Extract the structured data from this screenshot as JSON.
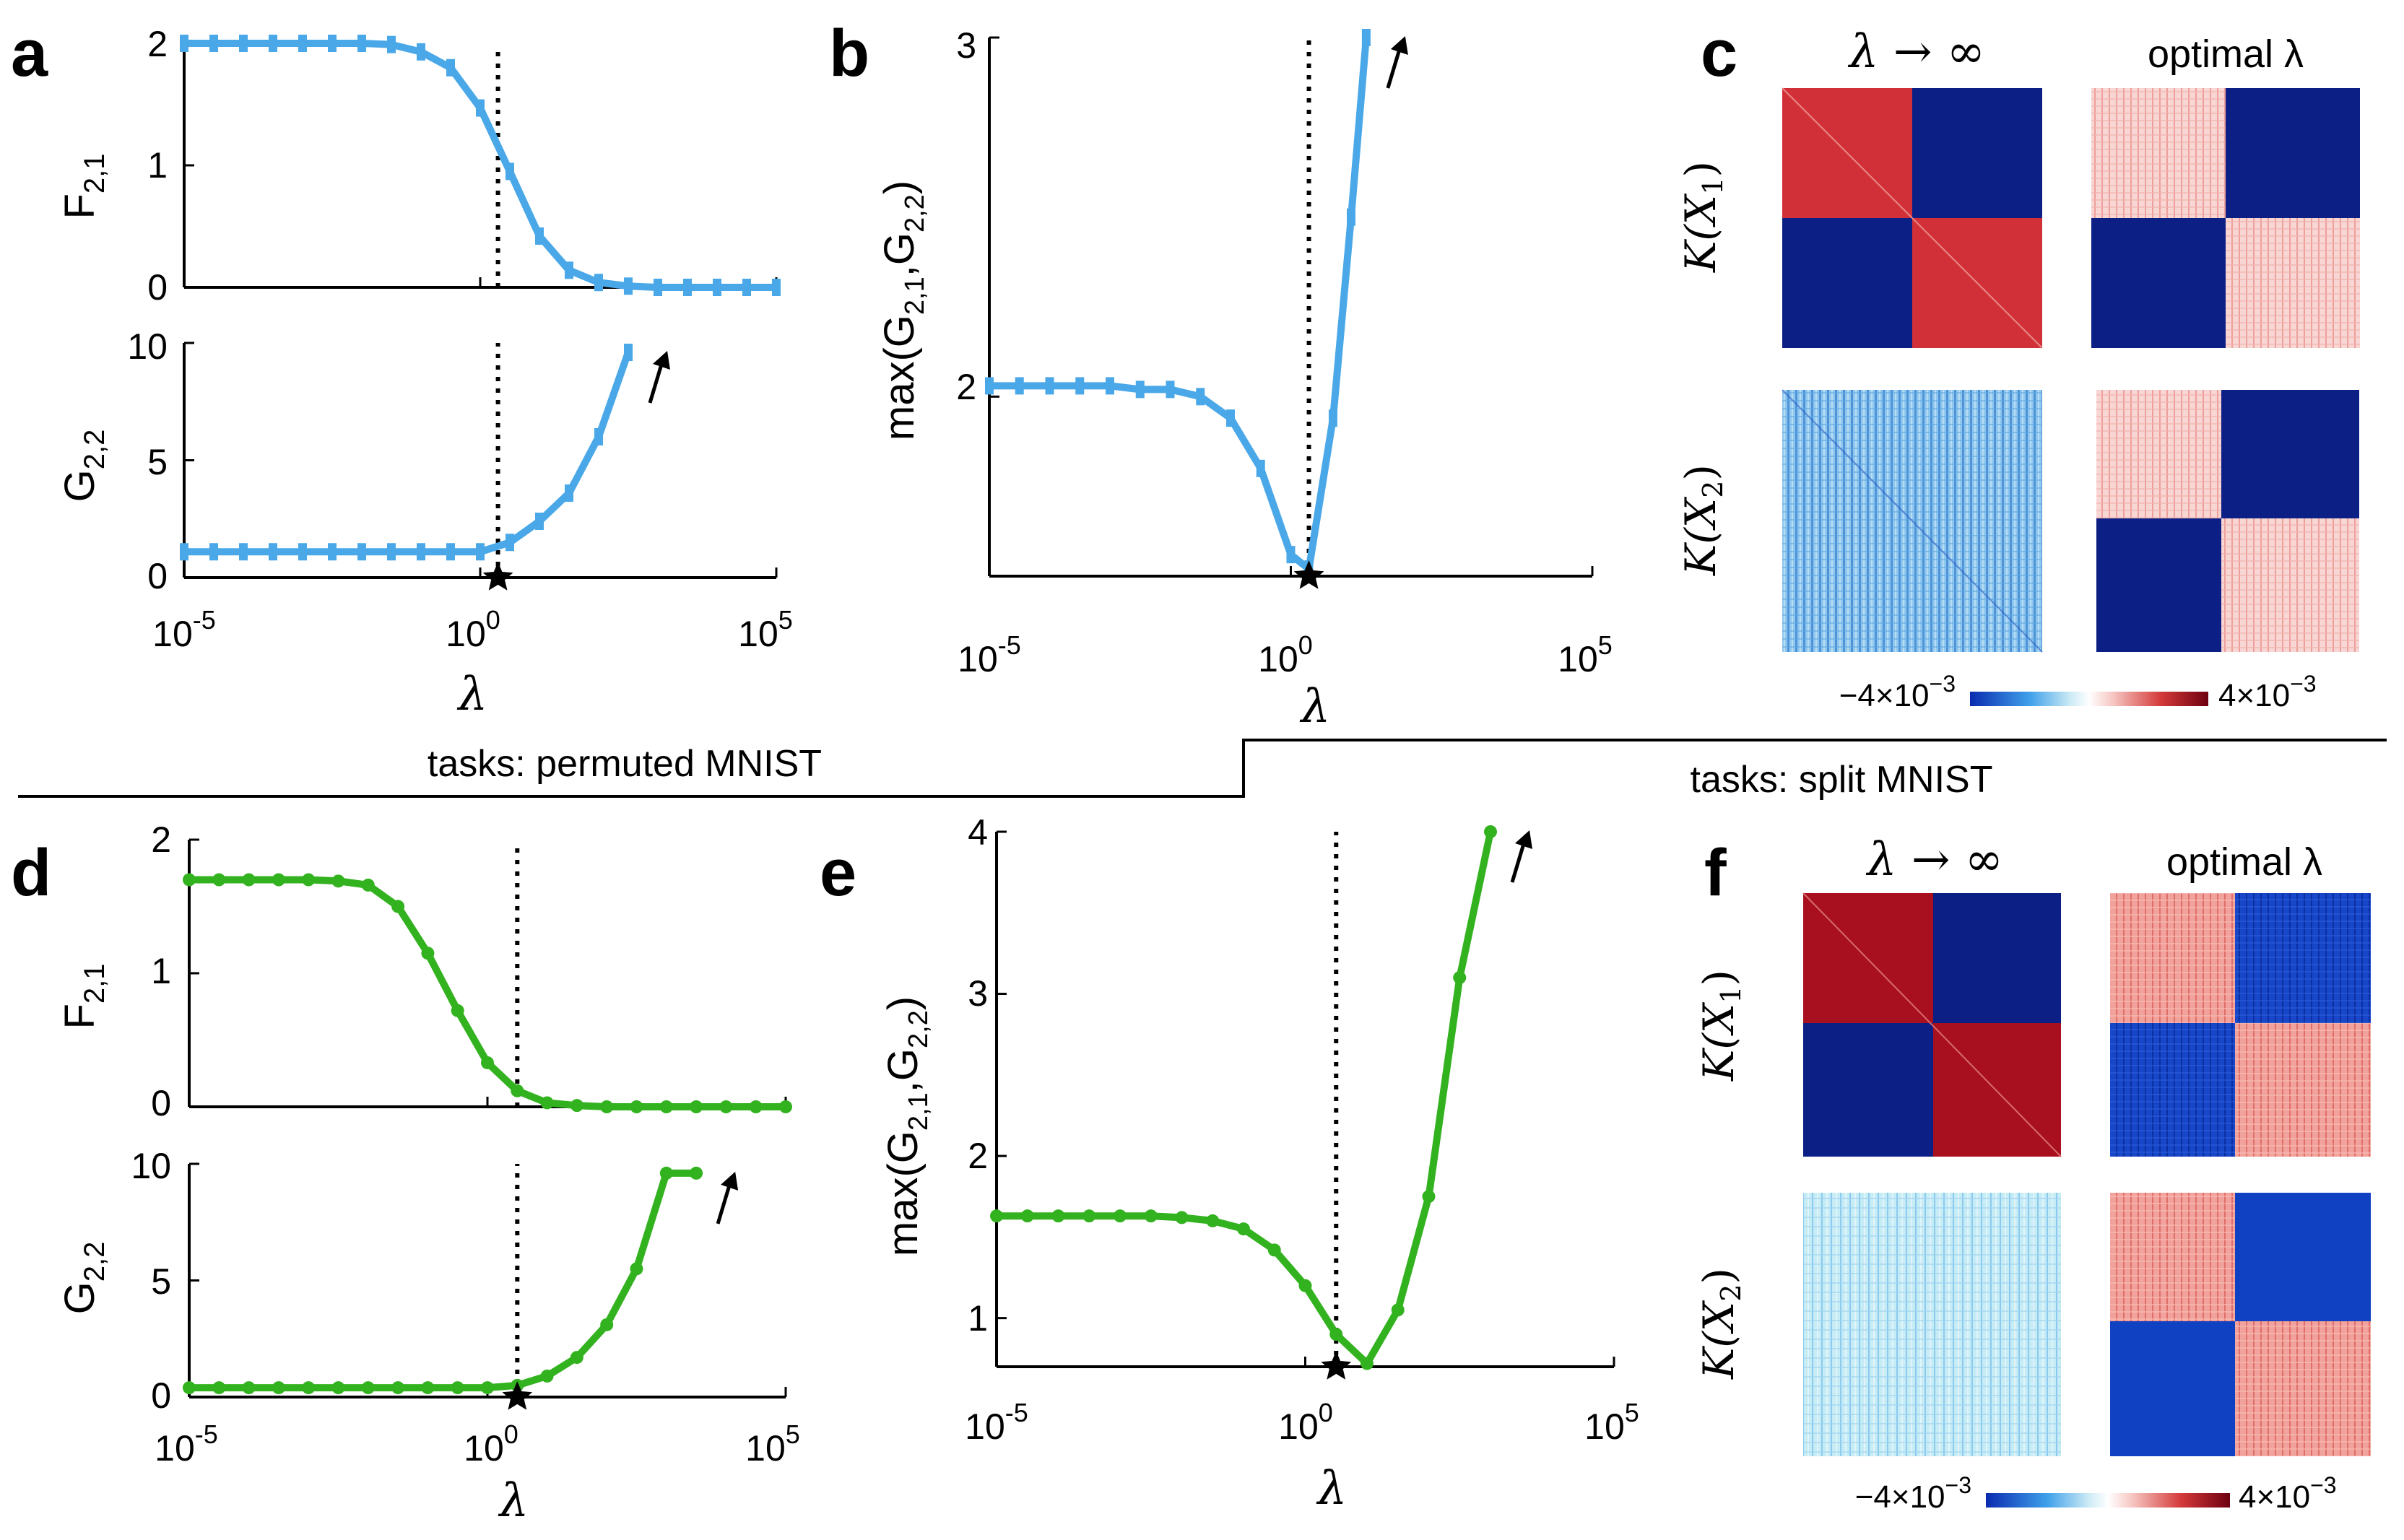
{
  "colors": {
    "blue": "#4aa8e8",
    "green": "#33b21f",
    "red": "#d0222e",
    "navy": "#0a1f86",
    "black": "#000000"
  },
  "labels": {
    "a": "a",
    "b": "b",
    "c": "c",
    "d": "d",
    "e": "e",
    "f": "f",
    "top_task": "tasks: permuted MNIST",
    "bottom_task": "tasks: split MNIST",
    "lambda": "λ",
    "lambda_inf": "λ → ∞",
    "optimal_lambda": "optimal λ",
    "kx1": "K(X",
    "kx1_sub": "1",
    "kx2": "K(X",
    "kx2_sub": "2",
    "k_close": ")",
    "cbar_min_base": "−4×10",
    "cbar_min_exp": "−3",
    "cbar_max_base": "4×10",
    "cbar_max_exp": "−3",
    "arrow": "↗"
  },
  "axis_text": {
    "F21_main": "F",
    "F21_sub": "2,1",
    "G22_main": "G",
    "G22_sub": "2,2",
    "max_pre": "max(G",
    "max_sub1": "2,1",
    "max_mid": ",G",
    "max_sub2": "2,2",
    "max_post": ")",
    "x_ticks": [
      {
        "base": "10",
        "exp": "-5"
      },
      {
        "base": "10",
        "exp": "0"
      },
      {
        "base": "10",
        "exp": "5"
      }
    ]
  },
  "chart_data": [
    {
      "id": "a_top",
      "type": "line",
      "title": "",
      "xscale": "log10",
      "xlim": [
        -5,
        5
      ],
      "ylim": [
        0,
        2
      ],
      "yticks": [
        "0",
        "1",
        "2"
      ],
      "ylabel": "F_{2,1}",
      "xlabel": "",
      "vline_x": 0.3,
      "color": "blue",
      "marker": "error-bar",
      "x": [
        -5,
        -4.5,
        -4,
        -3.5,
        -3,
        -2.5,
        -2,
        -1.5,
        -1,
        -0.5,
        0,
        0.5,
        1,
        1.5,
        2,
        2.5,
        3,
        3.5,
        4,
        4.5,
        5
      ],
      "y": [
        2.0,
        2.0,
        2.0,
        2.0,
        2.0,
        2.0,
        2.0,
        1.99,
        1.93,
        1.8,
        1.47,
        0.95,
        0.42,
        0.14,
        0.04,
        0.01,
        0.0,
        0.0,
        0.0,
        0.0,
        0.0
      ]
    },
    {
      "id": "a_bottom",
      "type": "line",
      "title": "",
      "xscale": "log10",
      "xlim": [
        -5,
        5
      ],
      "ylim": [
        0,
        10
      ],
      "yticks": [
        "0",
        "5",
        "10"
      ],
      "ylabel": "G_{2,2}",
      "xlabel": "λ",
      "vline_x": 0.3,
      "optimum_marker_x": 0.3,
      "color": "blue",
      "marker": "error-bar",
      "arrow": "↗",
      "x": [
        -5,
        -4.5,
        -4,
        -3.5,
        -3,
        -2.5,
        -2,
        -1.5,
        -1,
        -0.5,
        0,
        0.5,
        1,
        1.5,
        2,
        2.5
      ],
      "y": [
        1.1,
        1.1,
        1.1,
        1.1,
        1.1,
        1.1,
        1.1,
        1.1,
        1.1,
        1.1,
        1.1,
        1.5,
        2.4,
        3.6,
        6.0,
        9.6
      ]
    },
    {
      "id": "b",
      "type": "line",
      "title": "",
      "xscale": "log10",
      "xlim": [
        -5,
        5
      ],
      "ylim": [
        1.5,
        3
      ],
      "yticks": [
        "2",
        "3"
      ],
      "ylabel": "max(G_{2,1},G_{2,2})",
      "xlabel": "λ",
      "vline_x": 0.3,
      "optimum_marker_x": 0.3,
      "color": "blue",
      "marker": "error-bar",
      "arrow": "↗",
      "x": [
        -5,
        -4.5,
        -4,
        -3.5,
        -3,
        -2.5,
        -2,
        -1.5,
        -1,
        -0.5,
        0,
        0.3,
        0.7,
        1,
        1.25
      ],
      "y": [
        2.03,
        2.03,
        2.03,
        2.03,
        2.03,
        2.02,
        2.02,
        2.0,
        1.94,
        1.8,
        1.56,
        1.52,
        1.94,
        2.5,
        3.0
      ]
    },
    {
      "id": "d_top",
      "type": "line",
      "title": "",
      "xscale": "log10",
      "xlim": [
        -5,
        5
      ],
      "ylim": [
        0,
        2
      ],
      "yticks": [
        "0",
        "1",
        "2"
      ],
      "ylabel": "F_{2,1}",
      "xlabel": "",
      "vline_x": 0.5,
      "color": "green",
      "marker": "dot",
      "x": [
        -5,
        -4.5,
        -4,
        -3.5,
        -3,
        -2.5,
        -2,
        -1.5,
        -1,
        -0.5,
        0,
        0.5,
        1,
        1.5,
        2,
        2.5,
        3,
        3.5,
        4,
        4.5,
        5
      ],
      "y": [
        1.7,
        1.7,
        1.7,
        1.7,
        1.7,
        1.69,
        1.66,
        1.5,
        1.15,
        0.72,
        0.33,
        0.12,
        0.03,
        0.01,
        0.0,
        0.0,
        0.0,
        0.0,
        0.0,
        0.0,
        0.0
      ]
    },
    {
      "id": "d_bottom",
      "type": "line",
      "title": "",
      "xscale": "log10",
      "xlim": [
        -5,
        5
      ],
      "ylim": [
        0,
        10
      ],
      "yticks": [
        "0",
        "5",
        "10"
      ],
      "ylabel": "G_{2,2}",
      "xlabel": "λ",
      "vline_x": 0.5,
      "optimum_marker_x": 0.5,
      "color": "green",
      "marker": "dot",
      "arrow": "↗",
      "x": [
        -5,
        -4.5,
        -4,
        -3.5,
        -3,
        -2.5,
        -2,
        -1.5,
        -1,
        -0.5,
        0,
        0.5,
        1,
        1.5,
        2,
        2.5,
        3,
        3.5
      ],
      "y": [
        0.4,
        0.4,
        0.4,
        0.4,
        0.4,
        0.4,
        0.4,
        0.4,
        0.4,
        0.4,
        0.4,
        0.5,
        0.9,
        1.7,
        3.1,
        5.5,
        9.6,
        9.6
      ]
    },
    {
      "id": "e",
      "type": "line",
      "title": "",
      "xscale": "log10",
      "xlim": [
        -5,
        5
      ],
      "ylim": [
        0.7,
        4
      ],
      "yticks": [
        "1",
        "2",
        "3",
        "4"
      ],
      "ylabel": "max(G_{2,1},G_{2,2})",
      "xlabel": "λ",
      "vline_x": 0.5,
      "optimum_marker_x": 0.5,
      "color": "green",
      "marker": "dot",
      "arrow": "↗",
      "x": [
        -5,
        -4.5,
        -4,
        -3.5,
        -3,
        -2.5,
        -2,
        -1.5,
        -1,
        -0.5,
        0,
        0.5,
        1,
        1.5,
        2,
        2.5,
        3
      ],
      "y": [
        1.63,
        1.63,
        1.63,
        1.63,
        1.63,
        1.63,
        1.62,
        1.6,
        1.55,
        1.42,
        1.2,
        0.9,
        0.72,
        1.05,
        1.75,
        3.1,
        4.0
      ]
    },
    {
      "id": "c",
      "type": "heatmap",
      "colormap": "blue-white-red",
      "cbar_range": [
        -0.004,
        0.004
      ],
      "columns": [
        "λ → ∞",
        "optimal λ"
      ],
      "rows": [
        "K(X1)",
        "K(X2)"
      ],
      "cells": [
        {
          "row": 0,
          "col": 0,
          "pattern": "blocks",
          "diag": "red",
          "off": "navy"
        },
        {
          "row": 0,
          "col": 1,
          "pattern": "blocks",
          "diag": "light-pink",
          "off": "navy"
        },
        {
          "row": 1,
          "col": 0,
          "pattern": "noise",
          "base": "light-blue"
        },
        {
          "row": 1,
          "col": 1,
          "pattern": "blocks",
          "diag": "light-pink",
          "off": "navy"
        }
      ]
    },
    {
      "id": "f",
      "type": "heatmap",
      "colormap": "blue-white-red",
      "cbar_range": [
        -0.004,
        0.004
      ],
      "columns": [
        "λ → ∞",
        "optimal λ"
      ],
      "rows": [
        "K(X1)",
        "K(X2)"
      ],
      "cells": [
        {
          "row": 0,
          "col": 0,
          "pattern": "blocks",
          "diag": "dark-red",
          "off": "navy"
        },
        {
          "row": 0,
          "col": 1,
          "pattern": "blocks",
          "diag": "pink",
          "off": "blue"
        },
        {
          "row": 1,
          "col": 0,
          "pattern": "noise",
          "base": "pale-blue"
        },
        {
          "row": 1,
          "col": 1,
          "pattern": "blocks",
          "diag": "salmon",
          "off": "blue"
        }
      ]
    }
  ]
}
